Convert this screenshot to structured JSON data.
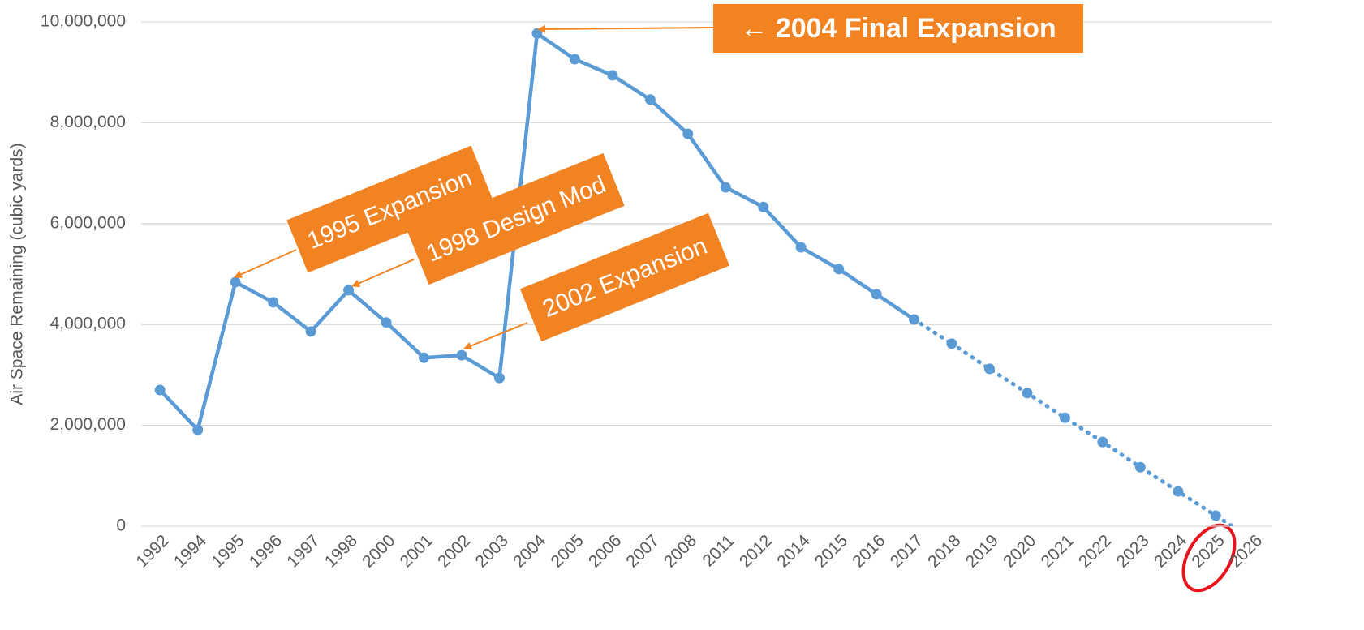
{
  "chart_data": {
    "type": "line",
    "y_label": "Air Space Remaining (cubic yards)",
    "categories": [
      "1992",
      "1994",
      "1995",
      "1996",
      "1997",
      "1998",
      "2000",
      "2001",
      "2002",
      "2003",
      "2004",
      "2005",
      "2006",
      "2007",
      "2008",
      "2011",
      "2012",
      "2014",
      "2015",
      "2016",
      "2017",
      "2018",
      "2019",
      "2020",
      "2021",
      "2022",
      "2023",
      "2024",
      "2025",
      "2026"
    ],
    "series": [
      {
        "color": "#5b9bd5",
        "dash": false,
        "values": [
          2700000,
          1910000,
          4840000,
          4440000,
          3860000,
          4680000,
          4040000,
          3340000,
          3390000,
          2940000,
          9770000,
          9260000,
          8940000,
          8460000,
          7780000,
          6720000,
          6330000,
          5530000,
          5100000,
          4600000,
          4100000,
          null,
          null,
          null,
          null,
          null,
          null,
          null,
          null,
          null
        ]
      },
      {
        "color": "#5b9bd5",
        "dash": true,
        "values": [
          null,
          null,
          null,
          null,
          null,
          null,
          null,
          null,
          null,
          null,
          null,
          null,
          null,
          null,
          null,
          null,
          null,
          null,
          null,
          null,
          null,
          3620000,
          3120000,
          2640000,
          2150000,
          1670000,
          1170000,
          690000,
          210000,
          -270000
        ]
      }
    ],
    "ylim": [
      0,
      10000000
    ],
    "yticks": [
      0,
      {
        "value": 2000000,
        "label": "2,000,000"
      },
      {
        "value": 4000000,
        "label": "4,000,000"
      },
      {
        "value": 6000000,
        "label": "6,000,000"
      },
      {
        "value": 8000000,
        "label": "8,000,000"
      },
      {
        "value": 10000000,
        "label": "10,000,000"
      }
    ],
    "grid": true,
    "annotation_color": "#f28322",
    "annotations": [
      {
        "text": "1995 Expansion"
      },
      {
        "text": "1998 Design Mod"
      },
      {
        "text": "2002 Expansion"
      },
      {
        "text": "← 2004 Final Expansion"
      }
    ]
  }
}
